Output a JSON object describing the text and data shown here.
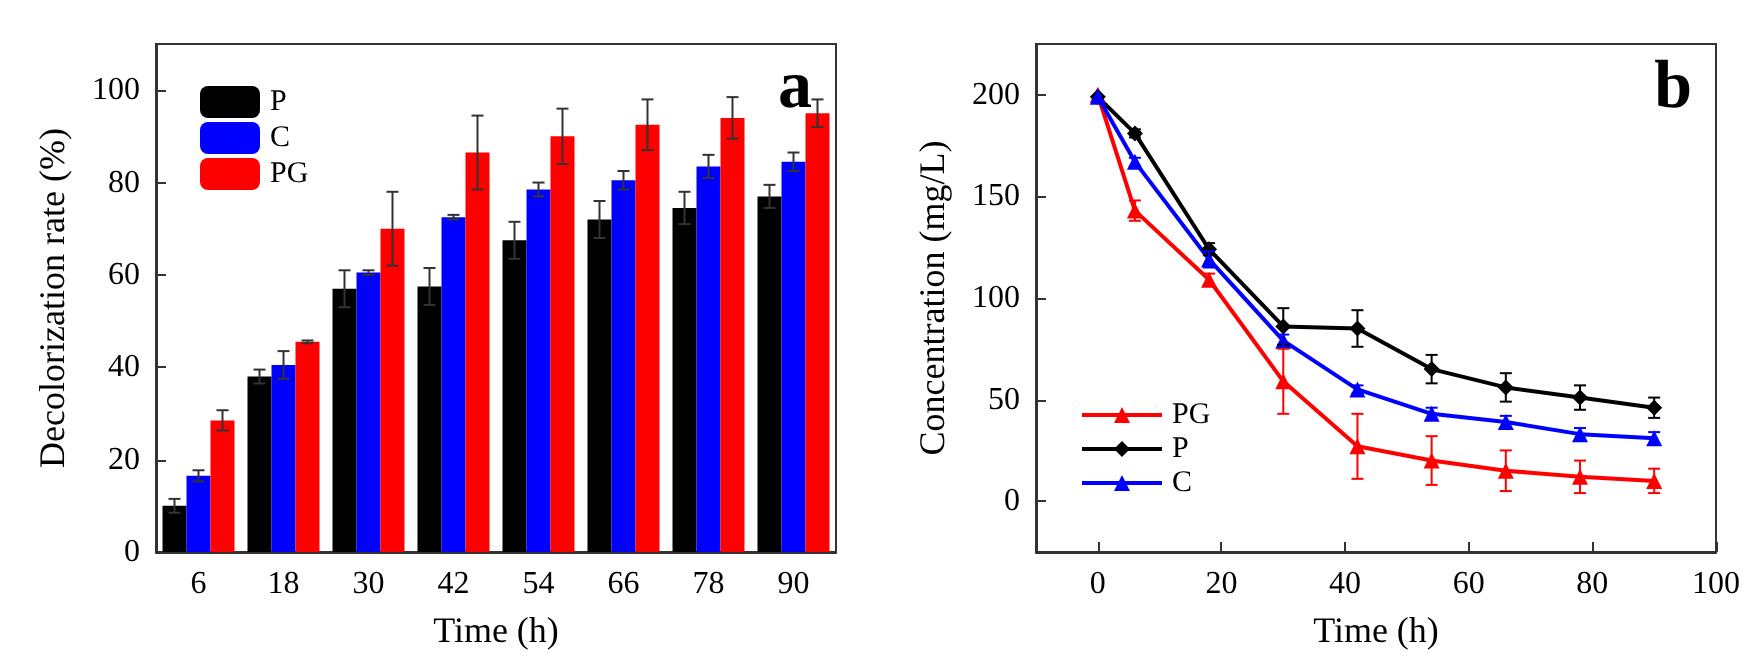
{
  "chart_data": [
    {
      "type": "bar",
      "xlabel": "Time (h)",
      "ylabel": "Decolorization rate (%)",
      "categories": [
        "6",
        "18",
        "30",
        "42",
        "54",
        "66",
        "78",
        "90"
      ],
      "series": [
        {
          "name": "P",
          "color": "#000000",
          "values": [
            10,
            38,
            57,
            57.5,
            67.5,
            72,
            74.5,
            77
          ],
          "errors": [
            1.5,
            1.5,
            4,
            4,
            4,
            4,
            3.5,
            2.5
          ]
        },
        {
          "name": "C",
          "color": "#0000ff",
          "values": [
            16.5,
            40.5,
            60.5,
            72.5,
            78.5,
            80.5,
            83.5,
            84.5
          ],
          "errors": [
            1.2,
            3,
            0.5,
            0.5,
            1.5,
            2,
            2.5,
            2
          ]
        },
        {
          "name": "PG",
          "color": "#ff0000",
          "values": [
            28.5,
            45.5,
            70,
            86.5,
            90,
            92.5,
            94,
            95
          ],
          "errors": [
            2.2,
            0.3,
            8,
            8,
            6,
            5.5,
            4.5,
            3
          ]
        }
      ],
      "ylim": [
        0,
        110
      ],
      "yticks": [
        0,
        20,
        40,
        60,
        80,
        100
      ],
      "grid": false,
      "legend": "top left",
      "annotations": [
        "a"
      ]
    },
    {
      "type": "line",
      "xlabel": "Time (h)",
      "ylabel": "Concentration (mg/L)",
      "x": [
        0,
        6,
        18,
        30,
        42,
        54,
        66,
        78,
        90
      ],
      "series": [
        {
          "name": "PG",
          "color": "#ff0000",
          "marker": "triangle",
          "values": [
            200,
            143,
            109,
            59,
            27,
            20,
            15,
            12,
            10
          ],
          "errors": [
            null,
            5,
            3,
            16,
            16,
            12,
            10,
            8,
            6
          ]
        },
        {
          "name": "P",
          "color": "#000000",
          "marker": "diamond",
          "values": [
            199,
            181,
            124,
            86,
            85,
            65,
            56,
            51,
            46
          ],
          "errors": [
            null,
            2,
            3,
            9,
            9,
            7,
            7,
            6,
            5
          ]
        },
        {
          "name": "C",
          "color": "#0000ff",
          "marker": "triangle",
          "values": [
            199,
            167,
            119,
            79,
            55,
            43,
            39,
            33,
            31
          ],
          "errors": [
            null,
            2,
            4,
            3,
            2,
            3,
            3,
            3,
            3
          ]
        }
      ],
      "xlim": [
        -10,
        100
      ],
      "xticks": [
        0,
        20,
        40,
        60,
        80,
        100
      ],
      "ylim": [
        -25,
        225
      ],
      "yticks": [
        0,
        50,
        100,
        150,
        200
      ],
      "grid": false,
      "legend": "bottom left",
      "annotations": [
        "b"
      ]
    }
  ]
}
